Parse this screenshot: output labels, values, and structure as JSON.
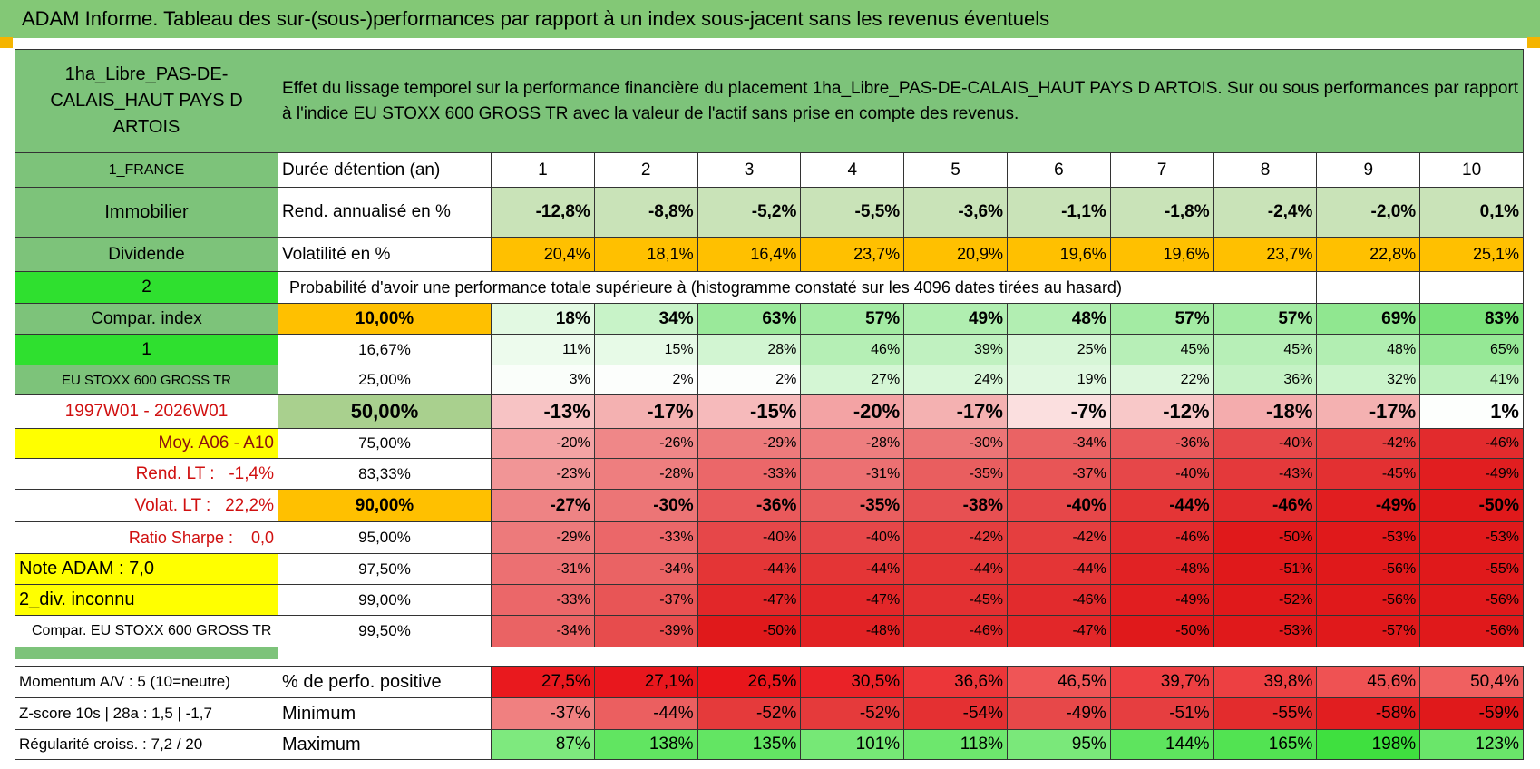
{
  "title": "ADAM Informe. Tableau des sur-(sous-)performances par rapport à un index sous-jacent sans les revenus éventuels",
  "asset_name": "1ha_Libre_PAS-DE-CALAIS_HAUT PAYS D ARTOIS",
  "description": "Effet du lissage temporel sur la performance financière du placement 1ha_Libre_PAS-DE-CALAIS_HAUT PAYS D ARTOIS. Sur ou sous performances par rapport à l'indice EU STOXX 600 GROSS TR avec la valeur de l'actif sans prise en compte des revenus.",
  "side_labels": [
    "1_FRANCE",
    "Immobilier",
    "Dividende",
    "2",
    "Compar. index",
    "1",
    "EU STOXX 600 GROSS TR",
    "1997W01 - 2026W01",
    "Moy. A06 - A10",
    "Rend. LT :   -1,4%",
    "Volat. LT :   22,2%",
    "Ratio Sharpe :    0,0",
    "Note ADAM : 7,0",
    "2_div. inconnu",
    "Compar. EU STOXX 600 GROSS TR"
  ],
  "summary": {
    "header_label": "Durée détention (an)",
    "years": [
      1,
      2,
      3,
      4,
      5,
      6,
      7,
      8,
      9,
      10
    ],
    "rows": [
      {
        "label": "Rend. annualisé en %",
        "values": [
          "-12,8%",
          "-8,8%",
          "-5,2%",
          "-5,5%",
          "-3,6%",
          "-1,1%",
          "-1,8%",
          "-2,4%",
          "-2,0%",
          "0,1%"
        ]
      },
      {
        "label": "Volatilité en %",
        "values": [
          "20,4%",
          "18,1%",
          "16,4%",
          "23,7%",
          "20,9%",
          "19,6%",
          "19,6%",
          "23,7%",
          "22,8%",
          "25,1%"
        ]
      }
    ]
  },
  "probability": {
    "title": "Probabilité d'avoir une performance totale supérieure à (histogramme constaté sur les 4096 dates tirées au hasard)",
    "rows": [
      {
        "threshold": "10,00%",
        "values": [
          "18%",
          "34%",
          "63%",
          "57%",
          "49%",
          "48%",
          "57%",
          "57%",
          "69%",
          "83%"
        ]
      },
      {
        "threshold": "16,67%",
        "values": [
          "11%",
          "15%",
          "28%",
          "46%",
          "39%",
          "25%",
          "45%",
          "45%",
          "48%",
          "65%"
        ]
      },
      {
        "threshold": "25,00%",
        "values": [
          "3%",
          "2%",
          "2%",
          "27%",
          "24%",
          "19%",
          "22%",
          "36%",
          "32%",
          "41%"
        ]
      },
      {
        "threshold": "50,00%",
        "values": [
          "-13%",
          "-17%",
          "-15%",
          "-20%",
          "-17%",
          "-7%",
          "-12%",
          "-18%",
          "-17%",
          "1%"
        ]
      },
      {
        "threshold": "75,00%",
        "values": [
          "-20%",
          "-26%",
          "-29%",
          "-28%",
          "-30%",
          "-34%",
          "-36%",
          "-40%",
          "-42%",
          "-46%"
        ]
      },
      {
        "threshold": "83,33%",
        "values": [
          "-23%",
          "-28%",
          "-33%",
          "-31%",
          "-35%",
          "-37%",
          "-40%",
          "-43%",
          "-45%",
          "-49%"
        ]
      },
      {
        "threshold": "90,00%",
        "values": [
          "-27%",
          "-30%",
          "-36%",
          "-35%",
          "-38%",
          "-40%",
          "-44%",
          "-46%",
          "-49%",
          "-50%"
        ]
      },
      {
        "threshold": "95,00%",
        "values": [
          "-29%",
          "-33%",
          "-40%",
          "-40%",
          "-42%",
          "-42%",
          "-46%",
          "-50%",
          "-53%",
          "-53%"
        ]
      },
      {
        "threshold": "97,50%",
        "values": [
          "-31%",
          "-34%",
          "-44%",
          "-44%",
          "-44%",
          "-44%",
          "-48%",
          "-51%",
          "-56%",
          "-55%"
        ]
      },
      {
        "threshold": "99,00%",
        "values": [
          "-33%",
          "-37%",
          "-47%",
          "-47%",
          "-45%",
          "-46%",
          "-49%",
          "-52%",
          "-56%",
          "-56%"
        ]
      },
      {
        "threshold": "99,50%",
        "values": [
          "-34%",
          "-39%",
          "-50%",
          "-48%",
          "-46%",
          "-47%",
          "-50%",
          "-53%",
          "-57%",
          "-56%"
        ]
      }
    ]
  },
  "bottom": {
    "rows": [
      {
        "side": "Momentum A/V : 5 (10=neutre)",
        "label": "% de perfo. positive",
        "values": [
          "27,5%",
          "27,1%",
          "26,5%",
          "30,5%",
          "36,6%",
          "46,5%",
          "39,7%",
          "39,8%",
          "45,6%",
          "50,4%"
        ]
      },
      {
        "side": "Z-score 10s | 28a : 1,5 | -1,7",
        "label": "Minimum",
        "values": [
          "-37%",
          "-44%",
          "-52%",
          "-52%",
          "-54%",
          "-49%",
          "-51%",
          "-55%",
          "-58%",
          "-59%"
        ]
      },
      {
        "side": "Régularité croiss. : 7,2 / 20",
        "label": "Maximum",
        "values": [
          "87%",
          "138%",
          "135%",
          "101%",
          "118%",
          "95%",
          "144%",
          "165%",
          "198%",
          "123%"
        ]
      }
    ]
  }
}
